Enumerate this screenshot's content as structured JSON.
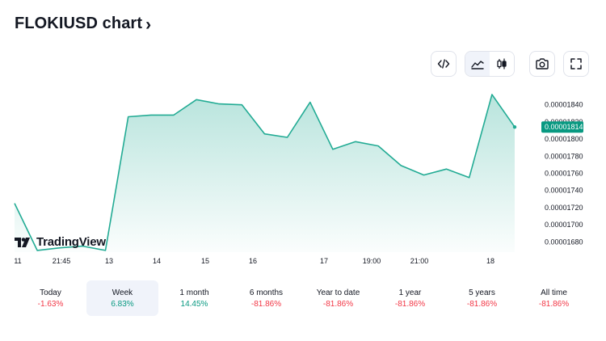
{
  "header": {
    "title": "FLOKIUSD chart",
    "chevron_icon": "chevron-right-icon"
  },
  "toolbar": {
    "items": [
      {
        "name": "embed-code",
        "icon": "code-icon",
        "active": false
      },
      {
        "name": "area-chart",
        "icon": "area-chart-icon",
        "active": true
      },
      {
        "name": "candle-chart",
        "icon": "candlestick-icon",
        "active": false
      },
      {
        "name": "snapshot",
        "icon": "camera-icon",
        "active": false
      },
      {
        "name": "fullscreen",
        "icon": "fullscreen-icon",
        "active": false
      }
    ]
  },
  "chart_data": {
    "type": "area",
    "title": "",
    "xlabel": "",
    "ylabel": "",
    "series": [
      {
        "values": [
          1.725e-05,
          1.67e-05,
          1.673e-05,
          1.675e-05,
          1.67e-05,
          1.826e-05,
          1.828e-05,
          1.828e-05,
          1.846e-05,
          1.841e-05,
          1.84e-05,
          1.806e-05,
          1.802e-05,
          1.843e-05,
          1.788e-05,
          1.797e-05,
          1.792e-05,
          1.769e-05,
          1.758e-05,
          1.765e-05,
          1.755e-05,
          1.852e-05,
          1.814e-05
        ]
      }
    ],
    "x_tick_labels": [
      "11",
      "21:45",
      "13",
      "14",
      "15",
      "16",
      "17",
      "19:00",
      "21:00",
      "18"
    ],
    "y_tick_labels": [
      "0.00001840",
      "0.00001820",
      "0.00001800",
      "0.00001780",
      "0.00001760",
      "0.00001740",
      "0.00001720",
      "0.00001700",
      "0.00001680"
    ],
    "y_ticks": [
      1.84e-05,
      1.82e-05,
      1.8e-05,
      1.78e-05,
      1.76e-05,
      1.74e-05,
      1.72e-05,
      1.7e-05,
      1.68e-05
    ],
    "ylim": [
      1.668e-05,
      1.868e-05
    ],
    "current_price_label": "0.00001814",
    "current_price": 1.814e-05,
    "grid": false,
    "line_color": "#22ab94",
    "fill_color_top": "#22ab94",
    "badge_color": "#089981"
  },
  "watermark": {
    "text": "TradingView"
  },
  "periods": [
    {
      "label": "Today",
      "change": "-1.63%",
      "trend": "neg",
      "active": false
    },
    {
      "label": "Week",
      "change": "6.83%",
      "trend": "pos",
      "active": true
    },
    {
      "label": "1 month",
      "change": "14.45%",
      "trend": "pos",
      "active": false
    },
    {
      "label": "6 months",
      "change": "-81.86%",
      "trend": "neg",
      "active": false
    },
    {
      "label": "Year to date",
      "change": "-81.86%",
      "trend": "neg",
      "active": false
    },
    {
      "label": "1 year",
      "change": "-81.86%",
      "trend": "neg",
      "active": false
    },
    {
      "label": "5 years",
      "change": "-81.86%",
      "trend": "neg",
      "active": false
    },
    {
      "label": "All time",
      "change": "-81.86%",
      "trend": "neg",
      "active": false
    }
  ]
}
